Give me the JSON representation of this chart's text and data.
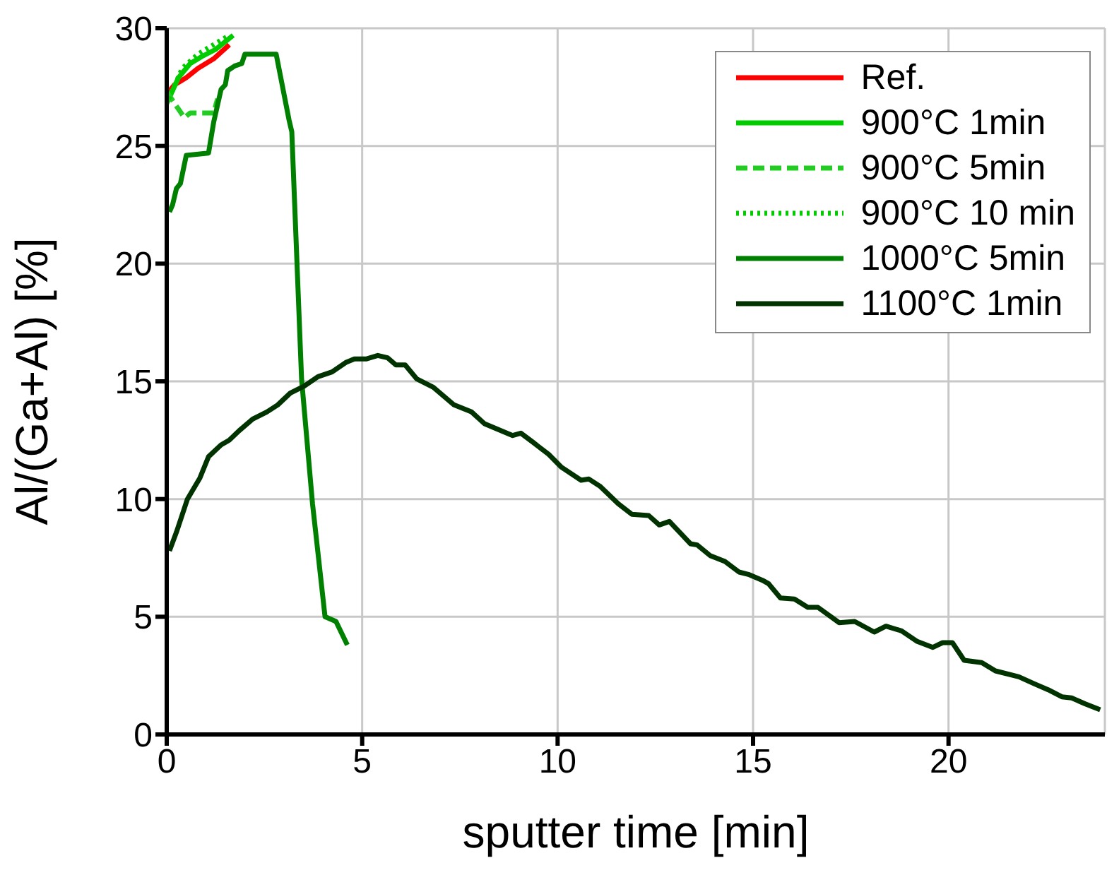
{
  "chart_data": {
    "type": "line",
    "xlabel": "sputter time [min]",
    "ylabel": "Al/(Ga+Al) [%]",
    "xlim": [
      0,
      24
    ],
    "xticks": [
      0,
      5,
      10,
      15,
      20
    ],
    "ylim": [
      0,
      30
    ],
    "yticks": [
      0,
      5,
      10,
      15,
      20,
      25,
      30
    ],
    "grid": true,
    "legend": "top right",
    "marker": "none",
    "series": [
      {
        "name": "Ref.",
        "color": "#ff0000",
        "line_style": "solid",
        "x": [
          0.05,
          0.2,
          0.5,
          0.8,
          1.2,
          1.6
        ],
        "values": [
          27.3,
          27.6,
          27.9,
          28.3,
          28.7,
          29.3
        ]
      },
      {
        "name": "900°C 1min",
        "color": "#00cc00",
        "line_style": "solid",
        "x": [
          0,
          0.3,
          0.6,
          0.9,
          1.25,
          1.7
        ],
        "values": [
          26.8,
          27.9,
          28.5,
          28.8,
          29.1,
          29.7
        ]
      },
      {
        "name": "900°C 5min",
        "color": "#22cc22",
        "line_style": "dashed",
        "x": [
          0,
          0.45,
          0.6,
          1.2,
          1.3
        ],
        "values": [
          27.3,
          26.2,
          26.4,
          26.4,
          27.0
        ]
      },
      {
        "name": "900°C 10 min",
        "color": "#00cc00",
        "line_style": "dotted",
        "x": [
          0.05,
          0.4,
          0.8,
          1.2,
          1.6
        ],
        "values": [
          27.0,
          28.3,
          28.9,
          29.3,
          29.7
        ]
      },
      {
        "name": "1000°C 5min",
        "color": "#008000",
        "line_style": "solid",
        "x": [
          0.07,
          0.15,
          0.25,
          0.35,
          0.5,
          1.07,
          1.2,
          1.39,
          1.5,
          1.56,
          1.74,
          1.92,
          2.0,
          2.8,
          3.13,
          3.2,
          3.45,
          3.73,
          4.05,
          4.33,
          4.62
        ],
        "values": [
          22.2,
          22.5,
          23.2,
          23.4,
          24.6,
          24.7,
          26.0,
          27.4,
          27.6,
          28.2,
          28.4,
          28.5,
          28.9,
          28.9,
          26.1,
          25.6,
          15.1,
          9.8,
          5.0,
          4.8,
          3.8
        ]
      },
      {
        "name": "1100°C 1min",
        "color": "#003300",
        "line_style": "solid",
        "x": [
          0.07,
          0.25,
          0.53,
          0.85,
          1.07,
          1.39,
          1.6,
          1.85,
          2.2,
          2.56,
          2.84,
          3.16,
          3.52,
          3.87,
          4.23,
          4.58,
          4.8,
          5.1,
          5.4,
          5.65,
          5.86,
          6.1,
          6.4,
          6.82,
          7.35,
          7.8,
          8.13,
          8.85,
          9.06,
          9.38,
          9.77,
          10.1,
          10.6,
          10.8,
          11.08,
          11.55,
          11.9,
          12.33,
          12.6,
          12.86,
          13.4,
          13.57,
          13.9,
          14.28,
          14.64,
          14.88,
          15.24,
          15.4,
          15.7,
          16.06,
          16.4,
          16.66,
          17.2,
          17.6,
          18.1,
          18.4,
          18.8,
          19.2,
          19.6,
          19.85,
          20.1,
          20.4,
          20.85,
          21.2,
          21.8,
          22.2,
          22.55,
          22.9,
          23.15,
          23.5,
          23.88
        ],
        "values": [
          7.8,
          8.6,
          10.0,
          10.9,
          11.8,
          12.3,
          12.5,
          12.9,
          13.4,
          13.7,
          14.0,
          14.5,
          14.8,
          15.2,
          15.4,
          15.8,
          15.95,
          15.95,
          16.1,
          16.0,
          15.7,
          15.7,
          15.1,
          14.75,
          14.0,
          13.7,
          13.2,
          12.7,
          12.8,
          12.4,
          11.9,
          11.35,
          10.8,
          10.85,
          10.55,
          9.8,
          9.35,
          9.3,
          8.9,
          9.05,
          8.1,
          8.05,
          7.6,
          7.35,
          6.9,
          6.8,
          6.55,
          6.4,
          5.8,
          5.75,
          5.4,
          5.4,
          4.75,
          4.8,
          4.35,
          4.6,
          4.4,
          3.95,
          3.7,
          3.9,
          3.9,
          3.15,
          3.05,
          2.7,
          2.45,
          2.15,
          1.9,
          1.6,
          1.55,
          1.3,
          1.05
        ]
      }
    ]
  }
}
